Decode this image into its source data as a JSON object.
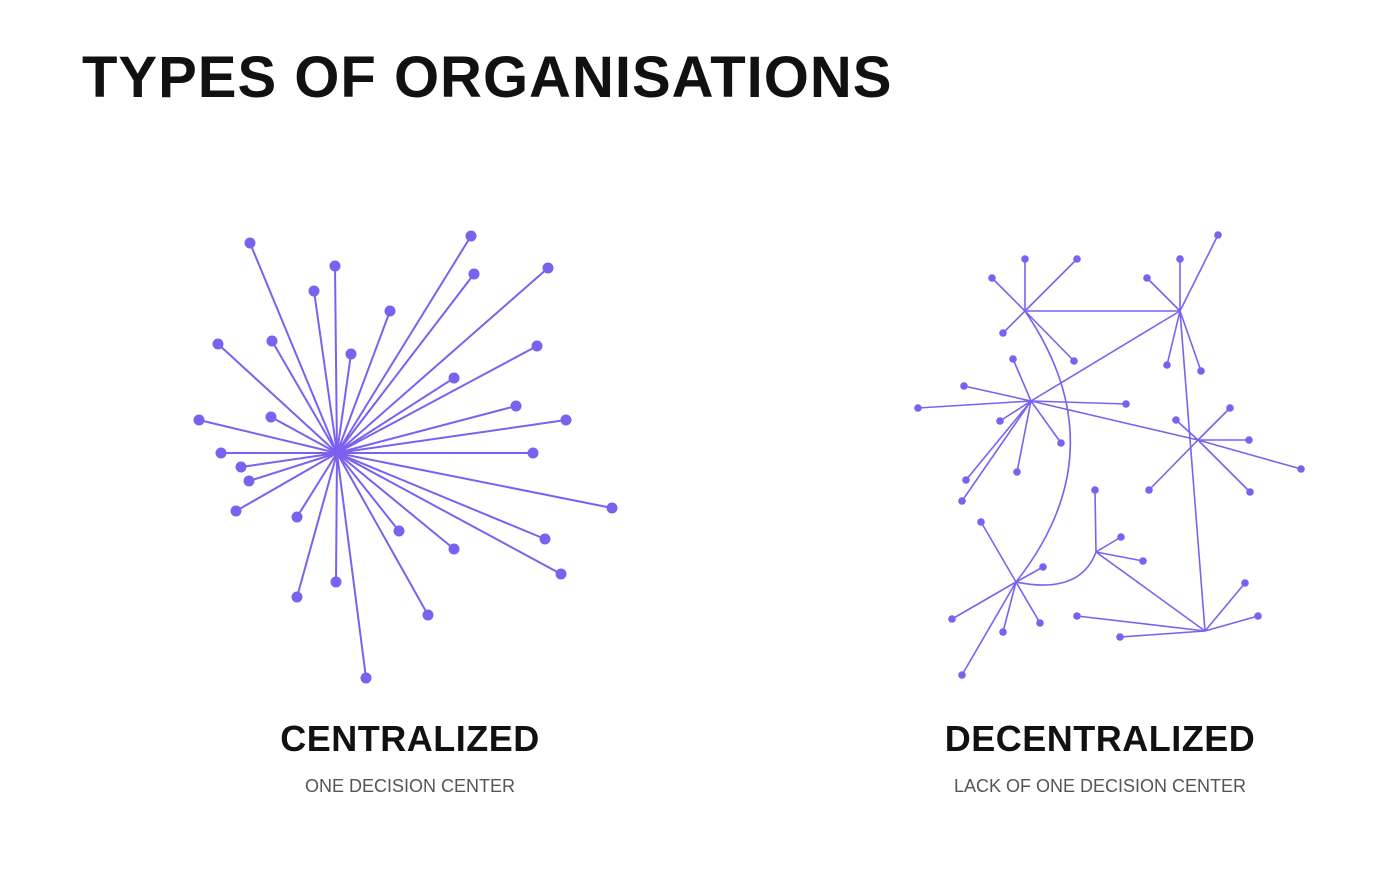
{
  "header": {
    "title": "TYPES OF ORGANISATIONS"
  },
  "panels": [
    {
      "label": "CENTRALIZED",
      "subtitle": "ONE DECISION CENTER"
    },
    {
      "label": "DECENTRALIZED",
      "subtitle": "LACK OF ONE DECISION CENTER"
    }
  ]
}
